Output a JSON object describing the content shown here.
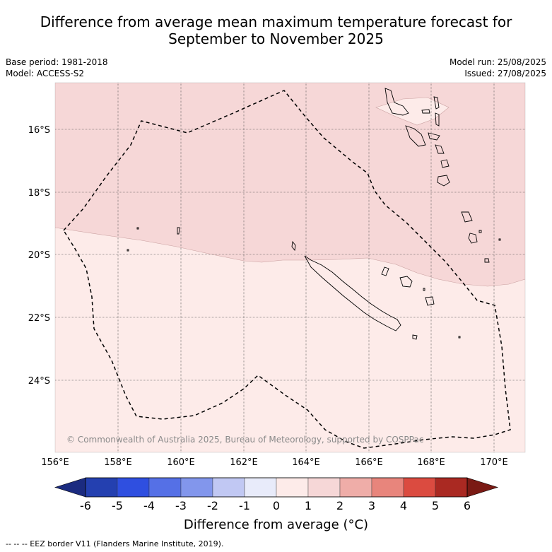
{
  "title_line1": "Difference from average mean maximum temperature forecast for",
  "title_line2": "September to November 2025",
  "base_period": "Base period: 1981-2018",
  "model": "Model: ACCESS-S2",
  "model_run": "Model run: 25/08/2025",
  "issued": "Issued: 27/08/2025",
  "copyright": "© Commonwealth of Australia 2025, Bureau of Meteorology, supported by COSPPac",
  "lat_labels": [
    "16°S",
    "18°S",
    "20°S",
    "22°S",
    "24°S"
  ],
  "lon_labels": [
    "156°E",
    "158°E",
    "160°E",
    "162°E",
    "164°E",
    "166°E",
    "168°E",
    "170°E"
  ],
  "colorbar": {
    "ticks": [
      "-6",
      "-5",
      "-4",
      "-3",
      "-2",
      "-1",
      "0",
      "1",
      "2",
      "3",
      "4",
      "5",
      "6"
    ],
    "colors": [
      "#1b2b80",
      "#2440b0",
      "#2f4fe0",
      "#5570e6",
      "#8296ec",
      "#c1c8f3",
      "#e8ebfa",
      "#fdebe9",
      "#f6d7d7",
      "#efada8",
      "#e8857c",
      "#db4b40",
      "#aa2922",
      "#7a1a14"
    ],
    "label": "Difference from average (°C)"
  },
  "map_colors": {
    "zone_0_1": "#fdebe9",
    "zone_1_2": "#f6d7d7"
  },
  "footer": "-- -- -- EEZ border V11 (Flanders Marine Institute, 2019)."
}
